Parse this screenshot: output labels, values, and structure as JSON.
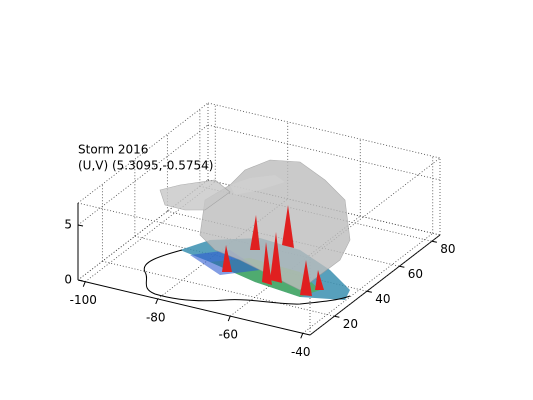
{
  "chart_data": {
    "type": "surface3d",
    "title": "Storm 2016",
    "subtitle": "(U,V) (5.3095,-0.5754)",
    "xlim": [
      -102,
      -38
    ],
    "xticks": [
      -100,
      -80,
      -60,
      -40
    ],
    "ylim": [
      5,
      85
    ],
    "yticks": [
      20,
      40,
      60,
      80
    ],
    "zlim": [
      0,
      7
    ],
    "zticks": [
      0,
      5
    ],
    "grid": true
  }
}
